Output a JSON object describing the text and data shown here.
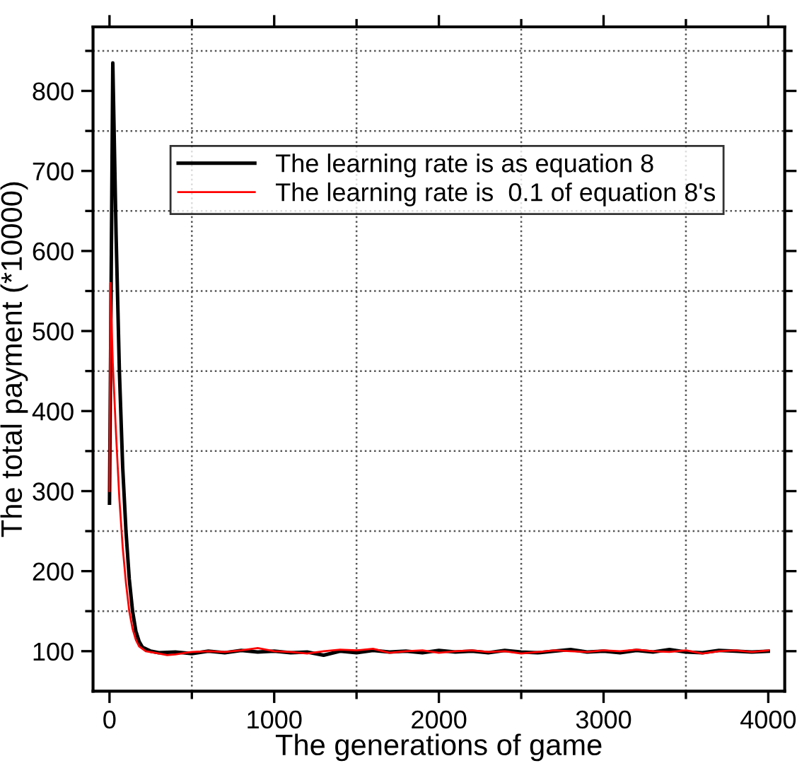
{
  "chart_data": {
    "type": "line",
    "xlabel": "The generations of game",
    "ylabel": "The total payment (*10000)",
    "xlim": [
      -100,
      4100
    ],
    "ylim": [
      50,
      880
    ],
    "xticks": [
      0,
      {
        "value": 500,
        "label": null
      },
      1000,
      {
        "value": 1500,
        "label": null
      },
      2000,
      {
        "value": 2500,
        "label": null
      },
      3000,
      {
        "value": 3500,
        "label": null
      },
      4000
    ],
    "yticks": [
      100,
      {
        "value": 150,
        "label": null
      },
      200,
      {
        "value": 250,
        "label": null
      },
      300,
      {
        "value": 350,
        "label": null
      },
      400,
      {
        "value": 450,
        "label": null
      },
      500,
      {
        "value": 550,
        "label": null
      },
      600,
      {
        "value": 650,
        "label": null
      },
      700,
      {
        "value": 750,
        "label": null
      },
      800,
      {
        "value": 850,
        "label": null
      }
    ],
    "grid": true,
    "legend": "top right",
    "line_style": "solid",
    "marker": "none",
    "series": [
      {
        "name": "The learning rate is as equation 8",
        "color": "#000000",
        "x": [
          0,
          20,
          40,
          60,
          80,
          100,
          120,
          140,
          160,
          180,
          200,
          250,
          300,
          400,
          500,
          600,
          700,
          800,
          900,
          1000,
          1100,
          1200,
          1300,
          1400,
          1500,
          1600,
          1700,
          1800,
          1900,
          2000,
          2100,
          2200,
          2300,
          2400,
          2500,
          2600,
          2700,
          2800,
          2900,
          3000,
          3100,
          3200,
          3300,
          3400,
          3500,
          3600,
          3700,
          3800,
          3900,
          4000
        ],
        "values": [
          285,
          835,
          620,
          450,
          330,
          250,
          190,
          150,
          125,
          112,
          105,
          100,
          98,
          99,
          97,
          100,
          98,
          101,
          99,
          100,
          98,
          99,
          95,
          100,
          98,
          101,
          99,
          100,
          98,
          101,
          99,
          100,
          98,
          101,
          99,
          98,
          100,
          102,
          99,
          100,
          98,
          101,
          99,
          102,
          99,
          98,
          101,
          100,
          99,
          100
        ]
      },
      {
        "name": "The learning rate is  0.1 of equation 8's",
        "color": "#ff0000",
        "x": [
          0,
          5,
          20,
          40,
          60,
          80,
          100,
          120,
          140,
          160,
          180,
          220,
          300,
          350,
          400,
          500,
          600,
          700,
          800,
          900,
          1000,
          1100,
          1200,
          1300,
          1400,
          1500,
          1600,
          1700,
          1800,
          1900,
          2000,
          2100,
          2200,
          2300,
          2400,
          2500,
          2600,
          2700,
          2800,
          2900,
          3000,
          3100,
          3200,
          3300,
          3400,
          3500,
          3600,
          3700,
          3800,
          3900,
          4000
        ],
        "values": [
          300,
          560,
          460,
          370,
          290,
          230,
          185,
          150,
          128,
          114,
          106,
          100,
          97,
          95,
          96,
          99,
          100,
          99,
          101,
          104,
          100,
          99,
          97,
          100,
          102,
          101,
          103,
          98,
          100,
          101,
          98,
          100,
          101,
          99,
          100,
          97,
          99,
          101,
          100,
          99,
          101,
          100,
          102,
          100,
          99,
          101,
          97,
          100,
          101,
          99,
          101
        ]
      }
    ]
  }
}
